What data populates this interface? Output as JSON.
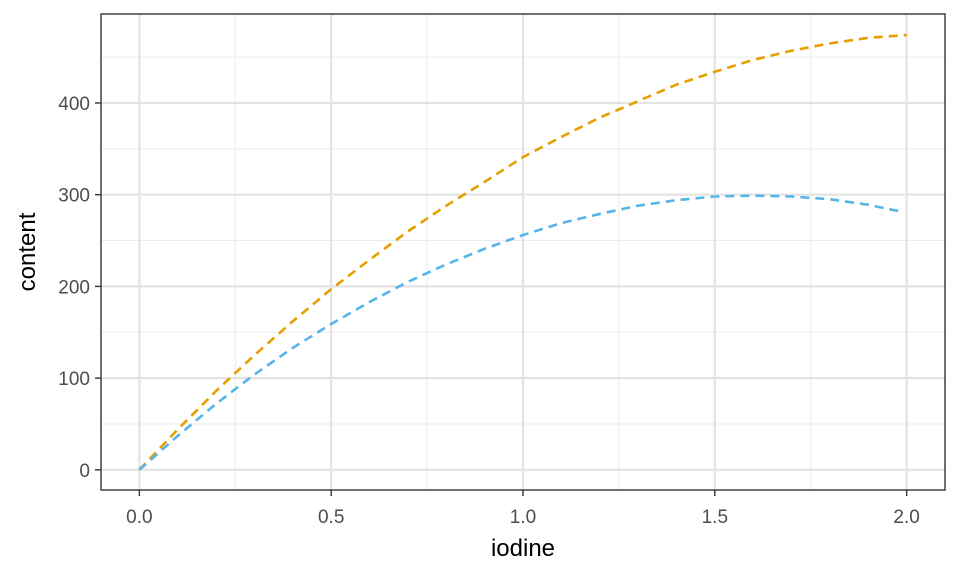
{
  "chart_data": {
    "type": "line",
    "title": "",
    "xlabel": "iodine",
    "ylabel": "content",
    "xlim": [
      -0.1,
      2.1
    ],
    "ylim": [
      -22,
      497
    ],
    "x_ticks": [
      "0.0",
      "0.5",
      "1.0",
      "1.5",
      "2.0"
    ],
    "x_tick_values": [
      0.0,
      0.5,
      1.0,
      1.5,
      2.0
    ],
    "y_ticks": [
      "0",
      "100",
      "200",
      "300",
      "400"
    ],
    "y_tick_values": [
      0,
      100,
      200,
      300,
      400
    ],
    "grid": true,
    "legend": "none",
    "line_style": "dashed",
    "series": [
      {
        "color": "#E69F00",
        "x": [
          0.0,
          0.1,
          0.2,
          0.3,
          0.4,
          0.5,
          0.6,
          0.7,
          0.8,
          0.9,
          1.0,
          1.1,
          1.2,
          1.3,
          1.4,
          1.5,
          1.6,
          1.7,
          1.8,
          1.9,
          2.0
        ],
        "values": [
          0,
          44,
          86,
          125,
          162,
          197,
          229,
          260,
          288,
          314,
          341,
          363,
          384,
          402,
          420,
          434,
          447,
          457,
          465,
          471,
          474
        ]
      },
      {
        "color": "#56B4E9",
        "x": [
          0.0,
          0.1,
          0.2,
          0.3,
          0.4,
          0.5,
          0.6,
          0.7,
          0.8,
          0.9,
          1.0,
          1.1,
          1.2,
          1.3,
          1.4,
          1.5,
          1.6,
          1.7,
          1.8,
          1.9,
          1.98
        ],
        "values": [
          0,
          37,
          72,
          104,
          133,
          159,
          183,
          205,
          224,
          241,
          256,
          269,
          279,
          288,
          294,
          298,
          299,
          298,
          295,
          289,
          282
        ]
      }
    ]
  }
}
